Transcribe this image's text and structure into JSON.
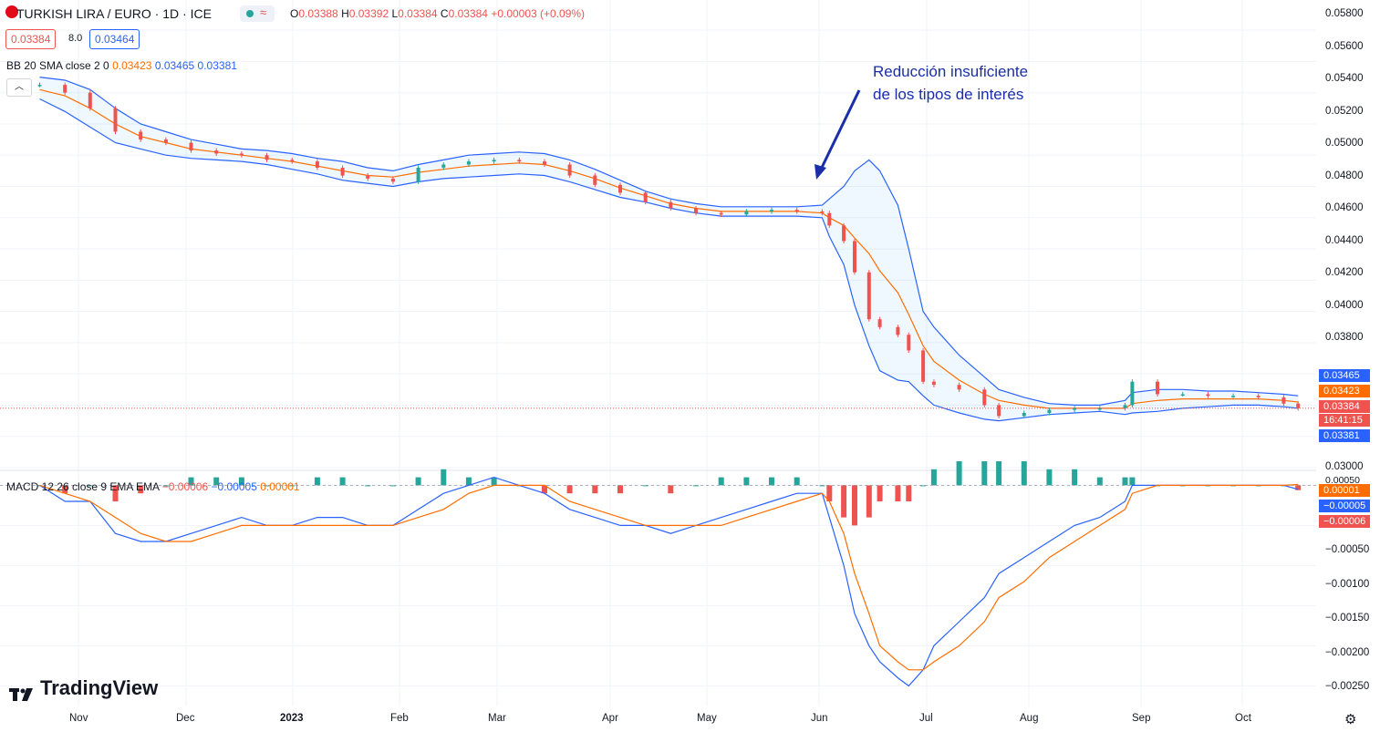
{
  "header": {
    "symbol_title": "TURKISH LIRA / EURO · 1D · ICE",
    "market_status_icon": "green-dot-icon",
    "ohlc": {
      "o_label": "O",
      "o": "0.03388",
      "h_label": "H",
      "h": "0.03392",
      "l_label": "L",
      "l": "0.03384",
      "c_label": "C",
      "c": "0.03384",
      "change": "+0.00003 (+0.09%)"
    },
    "bid": "0.03384",
    "spread": "8.0",
    "ask": "0.03464"
  },
  "bb_legend": {
    "name": "BB 20 SMA close 2 0",
    "basis": "0.03423",
    "upper": "0.03465",
    "lower": "0.03381"
  },
  "macd_legend": {
    "name": "MACD 12 26 close 9 EMA EMA",
    "hist": "−0.00006",
    "macd": "−0.00005",
    "signal": "0.00001"
  },
  "annotation": {
    "line1": "Reducción insuficiente",
    "line2": "de los tipos de interés"
  },
  "price_axis_labels": [
    "0.05800",
    "0.05600",
    "0.05400",
    "0.05200",
    "0.05000",
    "0.04800",
    "0.04600",
    "0.04400",
    "0.04200",
    "0.04000",
    "0.03800",
    "0.03000"
  ],
  "macd_axis_labels": [
    "0.00000",
    "−0.00050",
    "−0.00100",
    "−0.00150",
    "−0.00200",
    "−0.00250"
  ],
  "axis_tags": {
    "bb_upper": "0.03465",
    "bb_basis": "0.03423",
    "price": "0.03384",
    "countdown": "16:41:15",
    "bb_lower": "0.03381",
    "macd_top": "0.00050",
    "signal": "0.00001",
    "macd": "−0.00005",
    "hist": "−0.00006"
  },
  "time_labels": [
    "Nov",
    "Dec",
    "2023",
    "Feb",
    "Mar",
    "Apr",
    "May",
    "Jun",
    "Jul",
    "Aug",
    "Sep",
    "Oct"
  ],
  "branding": "TradingView",
  "colors": {
    "up": "#26a69a",
    "down": "#ef5350",
    "bb_band": "#2962ff",
    "basis": "#ff6d00",
    "macd": "#2962ff",
    "signal": "#ff6d00",
    "annotation": "#1a2ea8"
  },
  "chart_data": {
    "type": "candlestick",
    "title": "TURKISH LIRA / EURO · 1D · ICE",
    "price_range": [
      0.03,
      0.059
    ],
    "price_series": {
      "dates": [
        "2022-10-25",
        "2022-11-01",
        "2022-11-08",
        "2022-11-15",
        "2022-11-22",
        "2022-11-29",
        "2022-12-06",
        "2022-12-13",
        "2022-12-20",
        "2022-12-27",
        "2023-01-03",
        "2023-01-10",
        "2023-01-17",
        "2023-01-24",
        "2023-01-31",
        "2023-02-07",
        "2023-02-14",
        "2023-02-21",
        "2023-02-28",
        "2023-03-07",
        "2023-03-14",
        "2023-03-21",
        "2023-03-28",
        "2023-04-04",
        "2023-04-11",
        "2023-04-18",
        "2023-04-25",
        "2023-05-02",
        "2023-05-09",
        "2023-05-16",
        "2023-05-23",
        "2023-05-30",
        "2023-06-01",
        "2023-06-05",
        "2023-06-08",
        "2023-06-12",
        "2023-06-15",
        "2023-06-20",
        "2023-06-23",
        "2023-06-27",
        "2023-06-30",
        "2023-07-07",
        "2023-07-14",
        "2023-07-18",
        "2023-07-25",
        "2023-08-01",
        "2023-08-08",
        "2023-08-15",
        "2023-08-22",
        "2023-08-24",
        "2023-08-31",
        "2023-09-07",
        "2023-09-14",
        "2023-09-21",
        "2023-09-28",
        "2023-10-05",
        "2023-10-09"
      ],
      "close": [
        0.0545,
        0.054,
        0.053,
        0.0515,
        0.051,
        0.0508,
        0.0503,
        0.0501,
        0.05,
        0.0497,
        0.0496,
        0.0492,
        0.0487,
        0.0485,
        0.0483,
        0.0492,
        0.0494,
        0.0496,
        0.0497,
        0.0496,
        0.0494,
        0.0487,
        0.0481,
        0.0476,
        0.047,
        0.0466,
        0.0463,
        0.0462,
        0.0464,
        0.0465,
        0.0464,
        0.0463,
        0.0455,
        0.0445,
        0.0425,
        0.0395,
        0.039,
        0.0385,
        0.0375,
        0.0355,
        0.0353,
        0.035,
        0.034,
        0.0333,
        0.0335,
        0.0337,
        0.0338,
        0.0338,
        0.034,
        0.0355,
        0.0347,
        0.0347,
        0.0346,
        0.0346,
        0.0345,
        0.0341,
        0.0338
      ]
    },
    "bollinger": {
      "upper": [
        0.055,
        0.0548,
        0.0542,
        0.053,
        0.052,
        0.0515,
        0.051,
        0.0507,
        0.0504,
        0.0503,
        0.0501,
        0.0498,
        0.0496,
        0.0492,
        0.049,
        0.0494,
        0.0497,
        0.05,
        0.0501,
        0.0502,
        0.0501,
        0.0497,
        0.0491,
        0.0484,
        0.0477,
        0.0472,
        0.0469,
        0.0467,
        0.0467,
        0.0467,
        0.0467,
        0.0468,
        0.0472,
        0.048,
        0.049,
        0.0497,
        0.049,
        0.0468,
        0.044,
        0.04,
        0.039,
        0.0372,
        0.0358,
        0.035,
        0.0345,
        0.0341,
        0.034,
        0.034,
        0.0343,
        0.0348,
        0.035,
        0.035,
        0.0349,
        0.0349,
        0.0348,
        0.0347,
        0.0346
      ],
      "basis": [
        0.0542,
        0.0538,
        0.053,
        0.052,
        0.0512,
        0.0508,
        0.0504,
        0.0502,
        0.05,
        0.0498,
        0.0496,
        0.0493,
        0.049,
        0.0487,
        0.0486,
        0.0489,
        0.0491,
        0.0493,
        0.0494,
        0.0495,
        0.0494,
        0.049,
        0.0485,
        0.0479,
        0.0474,
        0.0469,
        0.0466,
        0.0464,
        0.0464,
        0.0464,
        0.0464,
        0.0463,
        0.046,
        0.0455,
        0.0447,
        0.0437,
        0.0426,
        0.0412,
        0.0398,
        0.0378,
        0.0368,
        0.0356,
        0.0347,
        0.0343,
        0.034,
        0.0338,
        0.0338,
        0.0338,
        0.0338,
        0.0341,
        0.0343,
        0.0344,
        0.0344,
        0.0344,
        0.0344,
        0.0343,
        0.0342
      ],
      "lower": [
        0.0536,
        0.0528,
        0.0518,
        0.0508,
        0.0504,
        0.05,
        0.0498,
        0.0497,
        0.0496,
        0.0494,
        0.0491,
        0.0488,
        0.0484,
        0.0482,
        0.048,
        0.0483,
        0.0485,
        0.0486,
        0.0487,
        0.0488,
        0.0487,
        0.0483,
        0.0478,
        0.0473,
        0.047,
        0.0466,
        0.0463,
        0.0461,
        0.0461,
        0.0461,
        0.0461,
        0.046,
        0.0448,
        0.043,
        0.0404,
        0.0378,
        0.0362,
        0.0356,
        0.0355,
        0.0346,
        0.034,
        0.0335,
        0.0331,
        0.033,
        0.0332,
        0.0334,
        0.0335,
        0.0336,
        0.0334,
        0.0335,
        0.0336,
        0.0338,
        0.0339,
        0.034,
        0.034,
        0.0339,
        0.0338
      ]
    },
    "macd_range": [
      -0.0027,
      5e-05
    ],
    "macd": {
      "macd": [
        0.0,
        -0.0002,
        -0.0002,
        -0.0006,
        -0.0007,
        -0.0007,
        -0.0006,
        -0.0005,
        -0.0004,
        -0.0005,
        -0.0005,
        -0.0004,
        -0.0004,
        -0.0005,
        -0.0005,
        -0.0003,
        -0.0001,
        0.0,
        0.0001,
        0.0,
        -0.0001,
        -0.0003,
        -0.0004,
        -0.0005,
        -0.0005,
        -0.0006,
        -0.0005,
        -0.0004,
        -0.0003,
        -0.0002,
        -0.0001,
        -0.0001,
        -0.0004,
        -0.001,
        -0.0016,
        -0.002,
        -0.0022,
        -0.0024,
        -0.0025,
        -0.0023,
        -0.002,
        -0.0017,
        -0.0014,
        -0.0011,
        -0.0009,
        -0.0007,
        -0.0005,
        -0.0004,
        -0.0002,
        0.0,
        0.0,
        0.0,
        0.0,
        0.0,
        0.0,
        0.0,
        -5e-05
      ],
      "signal": [
        0.0,
        -0.0001,
        -0.0002,
        -0.0004,
        -0.0006,
        -0.0007,
        -0.0007,
        -0.0006,
        -0.0005,
        -0.0005,
        -0.0005,
        -0.0005,
        -0.0005,
        -0.0005,
        -0.0005,
        -0.0004,
        -0.0003,
        -0.0001,
        0.0,
        0.0,
        0.0,
        -0.0002,
        -0.0003,
        -0.0004,
        -0.0005,
        -0.0005,
        -0.0005,
        -0.0005,
        -0.0004,
        -0.0003,
        -0.0002,
        -0.0001,
        -0.0002,
        -0.0006,
        -0.0011,
        -0.0016,
        -0.002,
        -0.0022,
        -0.0023,
        -0.0023,
        -0.0022,
        -0.002,
        -0.0017,
        -0.0014,
        -0.0012,
        -0.0009,
        -0.0007,
        -0.0005,
        -0.0003,
        -0.0001,
        0.0,
        0.0,
        0.0,
        0.0,
        0.0,
        0.0,
        1e-05
      ]
    }
  }
}
